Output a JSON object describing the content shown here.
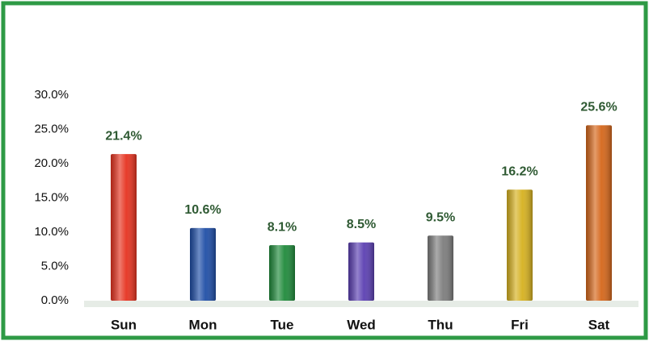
{
  "chart_data": {
    "type": "bar",
    "categories": [
      "Sun",
      "Mon",
      "Tue",
      "Wed",
      "Thu",
      "Fri",
      "Sat"
    ],
    "values": [
      21.4,
      10.6,
      8.1,
      8.5,
      9.5,
      16.2,
      25.6
    ],
    "value_labels": [
      "21.4%",
      "10.6%",
      "8.1%",
      "8.5%",
      "9.5%",
      "16.2%",
      "25.6%"
    ],
    "colors": [
      "#e63320",
      "#1f4ea6",
      "#1f8a3b",
      "#5b3fb2",
      "#7d7d7d",
      "#d6b11f",
      "#d5661a"
    ],
    "ylim": [
      0,
      30
    ],
    "yticks": [
      {
        "value": 0,
        "label": "0.0%"
      },
      {
        "value": 5,
        "label": "5.0%"
      },
      {
        "value": 10,
        "label": "10.0%"
      },
      {
        "value": 15,
        "label": "15.0%"
      },
      {
        "value": 20,
        "label": "20.0%"
      },
      {
        "value": 25,
        "label": "25.0%"
      },
      {
        "value": 30,
        "label": "30.0%"
      }
    ],
    "grid": false
  }
}
